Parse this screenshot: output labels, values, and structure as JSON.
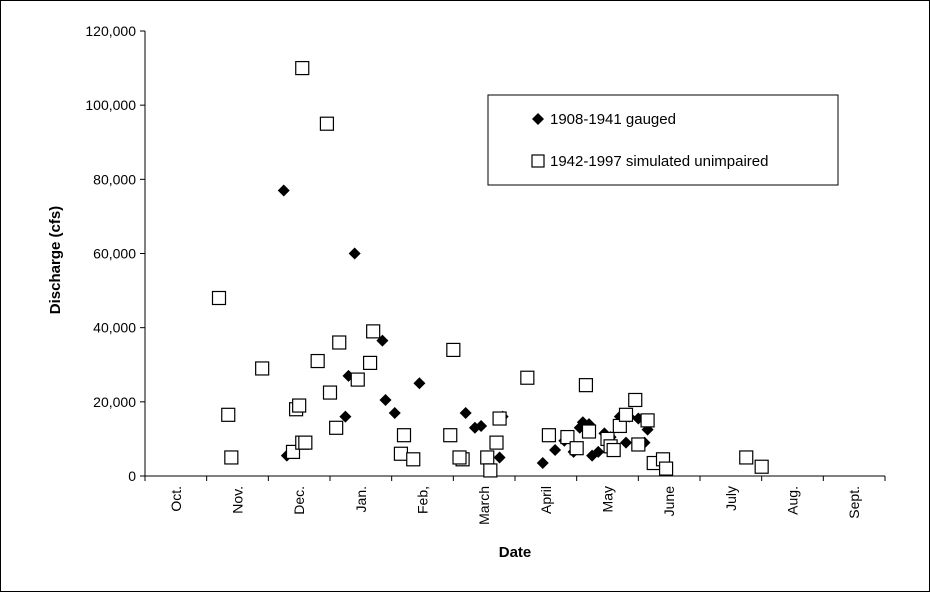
{
  "chart_data": {
    "type": "scatter",
    "xlabel": "Date",
    "ylabel": "Discharge (cfs)",
    "ylim": [
      0,
      120000
    ],
    "y_ticks": [
      0,
      20000,
      40000,
      60000,
      80000,
      100000,
      120000
    ],
    "y_tick_labels": [
      "0",
      "20,000",
      "40,000",
      "60,000",
      "80,000",
      "100,000",
      "120,000"
    ],
    "x_unit": "months since Oct. 1 (water year)",
    "xlim": [
      0,
      12
    ],
    "x_tick_labels": [
      "Oct.",
      "Nov.",
      "Dec.",
      "Jan.",
      "Feb,",
      "March",
      "April",
      "May",
      "June",
      "July",
      "Aug.",
      "Sept."
    ],
    "legend_position": "top-right",
    "grid": false,
    "series": [
      {
        "name": "1908-1941 gauged",
        "marker": "diamond",
        "color": "#000000",
        "points": [
          [
            2.25,
            77000
          ],
          [
            2.3,
            5500
          ],
          [
            3.4,
            60000
          ],
          [
            3.3,
            27000
          ],
          [
            3.25,
            16000
          ],
          [
            3.7,
            39000
          ],
          [
            3.85,
            36500
          ],
          [
            3.9,
            20500
          ],
          [
            4.05,
            17000
          ],
          [
            4.45,
            25000
          ],
          [
            5.2,
            17000
          ],
          [
            5.35,
            13000
          ],
          [
            5.45,
            13500
          ],
          [
            5.8,
            16000
          ],
          [
            5.75,
            5000
          ],
          [
            6.45,
            3500
          ],
          [
            6.65,
            7000
          ],
          [
            6.8,
            9500
          ],
          [
            6.95,
            6500
          ],
          [
            7.1,
            14500
          ],
          [
            7.2,
            14000
          ],
          [
            7.25,
            5500
          ],
          [
            7.35,
            6500
          ],
          [
            7.45,
            11500
          ],
          [
            7.55,
            10500
          ],
          [
            7.7,
            16000
          ],
          [
            7.85,
            16000
          ],
          [
            7.8,
            9000
          ],
          [
            8.0,
            15500
          ],
          [
            8.1,
            9000
          ],
          [
            8.15,
            12500
          ],
          [
            7.05,
            13000
          ]
        ]
      },
      {
        "name": "1942-1997 simulated unimpaired",
        "marker": "square",
        "color": "#000000",
        "points": [
          [
            1.2,
            48000
          ],
          [
            1.35,
            16500
          ],
          [
            1.4,
            5000
          ],
          [
            1.9,
            29000
          ],
          [
            2.45,
            18000
          ],
          [
            2.5,
            19000
          ],
          [
            2.4,
            6500
          ],
          [
            2.55,
            9000
          ],
          [
            2.6,
            9000
          ],
          [
            2.55,
            110000
          ],
          [
            2.95,
            95000
          ],
          [
            2.8,
            31000
          ],
          [
            3.15,
            36000
          ],
          [
            3.0,
            22500
          ],
          [
            3.1,
            13000
          ],
          [
            3.45,
            26000
          ],
          [
            3.65,
            30500
          ],
          [
            3.7,
            39000
          ],
          [
            4.2,
            11000
          ],
          [
            4.15,
            6000
          ],
          [
            4.35,
            4500
          ],
          [
            5.0,
            34000
          ],
          [
            4.95,
            11000
          ],
          [
            5.15,
            4500
          ],
          [
            5.1,
            5000
          ],
          [
            5.55,
            5000
          ],
          [
            5.6,
            1500
          ],
          [
            5.7,
            9000
          ],
          [
            5.75,
            15500
          ],
          [
            6.2,
            26500
          ],
          [
            6.55,
            11000
          ],
          [
            6.85,
            10500
          ],
          [
            7.0,
            7500
          ],
          [
            7.15,
            24500
          ],
          [
            7.2,
            12000
          ],
          [
            7.5,
            10000
          ],
          [
            7.55,
            8000
          ],
          [
            7.6,
            7000
          ],
          [
            7.7,
            13500
          ],
          [
            7.8,
            16500
          ],
          [
            7.95,
            20500
          ],
          [
            8.0,
            8500
          ],
          [
            8.15,
            15000
          ],
          [
            8.25,
            3500
          ],
          [
            8.4,
            4500
          ],
          [
            8.45,
            2000
          ],
          [
            9.75,
            5000
          ],
          [
            10.0,
            2500
          ]
        ]
      }
    ]
  }
}
